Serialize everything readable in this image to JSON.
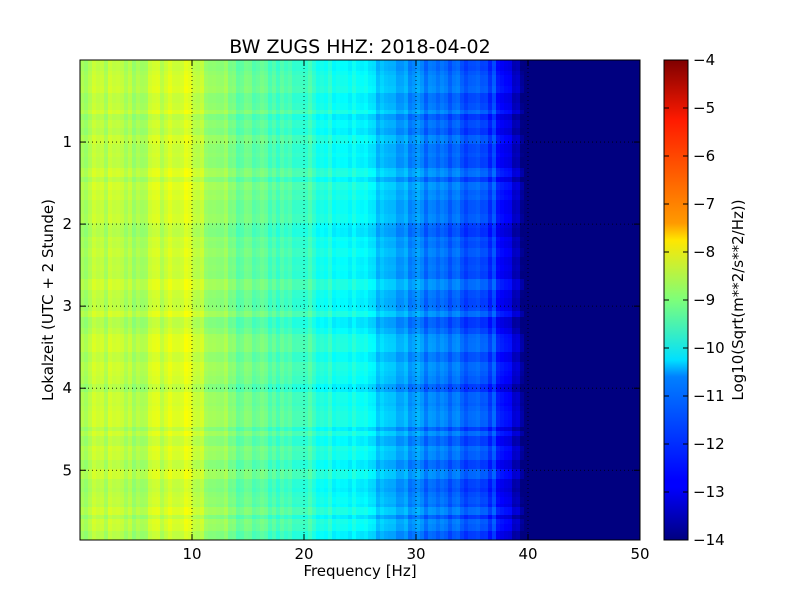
{
  "chart_data": {
    "type": "heatmap",
    "title": "BW ZUGS HHZ: 2018-04-02",
    "xlabel": "Frequency [Hz]",
    "ylabel": "Lokalzeit (UTC + 2 Stunde)",
    "colorbar_label": "Log10(Sqrt(m**2/s**2/Hz))",
    "colormap": "jet",
    "xlim": [
      0,
      50
    ],
    "ylim": [
      5.85,
      0
    ],
    "x_ticks": [
      10,
      20,
      30,
      40,
      50
    ],
    "y_ticks": [
      1,
      2,
      3,
      4,
      5
    ],
    "color_range": [
      -14,
      -4
    ],
    "colorbar_ticks": [
      -4,
      -5,
      -6,
      -7,
      -8,
      -9,
      -10,
      -11,
      -12,
      -13,
      -14
    ],
    "grid": true,
    "grid_style": "dotted",
    "frequency_profile": [
      {
        "freq": 0,
        "value": -8.7
      },
      {
        "freq": 2,
        "value": -8.4
      },
      {
        "freq": 5,
        "value": -8.6
      },
      {
        "freq": 7,
        "value": -8.3
      },
      {
        "freq": 9,
        "value": -8.1
      },
      {
        "freq": 12,
        "value": -8.7
      },
      {
        "freq": 14,
        "value": -9.2
      },
      {
        "freq": 17,
        "value": -9.4
      },
      {
        "freq": 20,
        "value": -9.7
      },
      {
        "freq": 23,
        "value": -10.0
      },
      {
        "freq": 25,
        "value": -10.3
      },
      {
        "freq": 27,
        "value": -10.8
      },
      {
        "freq": 29,
        "value": -11.3
      },
      {
        "freq": 31,
        "value": -11.5
      },
      {
        "freq": 33,
        "value": -11.8
      },
      {
        "freq": 35,
        "value": -12.0
      },
      {
        "freq": 37,
        "value": -12.2
      },
      {
        "freq": 38,
        "value": -12.8
      },
      {
        "freq": 39,
        "value": -13.5
      },
      {
        "freq": 40,
        "value": -14.0
      },
      {
        "freq": 50,
        "value": -14.0
      }
    ]
  }
}
